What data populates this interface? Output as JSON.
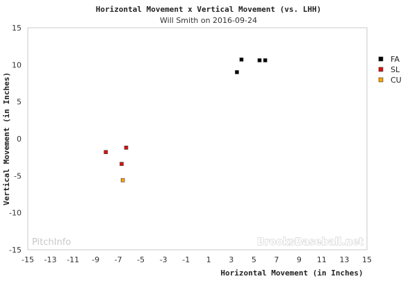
{
  "chart_data": {
    "type": "scatter",
    "title": "Horizontal Movement x Vertical Movement (vs. LHH)",
    "subtitle": "Will Smith on 2016-09-24",
    "xlabel": "Horizontal Movement (in Inches)",
    "ylabel": "Vertical Movement (in Inches)",
    "xlim": [
      -15,
      15
    ],
    "ylim": [
      -15,
      15
    ],
    "x_ticks": [
      -15,
      -13,
      -11,
      -9,
      -7,
      -5,
      -3,
      -1,
      1,
      3,
      5,
      7,
      9,
      11,
      13,
      15
    ],
    "y_ticks": [
      15,
      10,
      5,
      0,
      -5,
      -10,
      -15
    ],
    "grid": false,
    "legend_position": "right",
    "series": [
      {
        "name": "FA",
        "color": "#000000",
        "points": [
          [
            3.5,
            9.0
          ],
          [
            3.9,
            10.7
          ],
          [
            5.5,
            10.6
          ],
          [
            6.0,
            10.6
          ]
        ]
      },
      {
        "name": "SL",
        "color": "#dd1111",
        "points": [
          [
            -8.1,
            -1.8
          ],
          [
            -6.3,
            -1.2
          ],
          [
            -6.7,
            -3.4
          ]
        ]
      },
      {
        "name": "CU",
        "color": "#ffa500",
        "points": [
          [
            -6.6,
            -5.6
          ]
        ]
      }
    ]
  },
  "watermarks": {
    "left": "PitchInfo",
    "right": "BrooksBaseball.net"
  }
}
